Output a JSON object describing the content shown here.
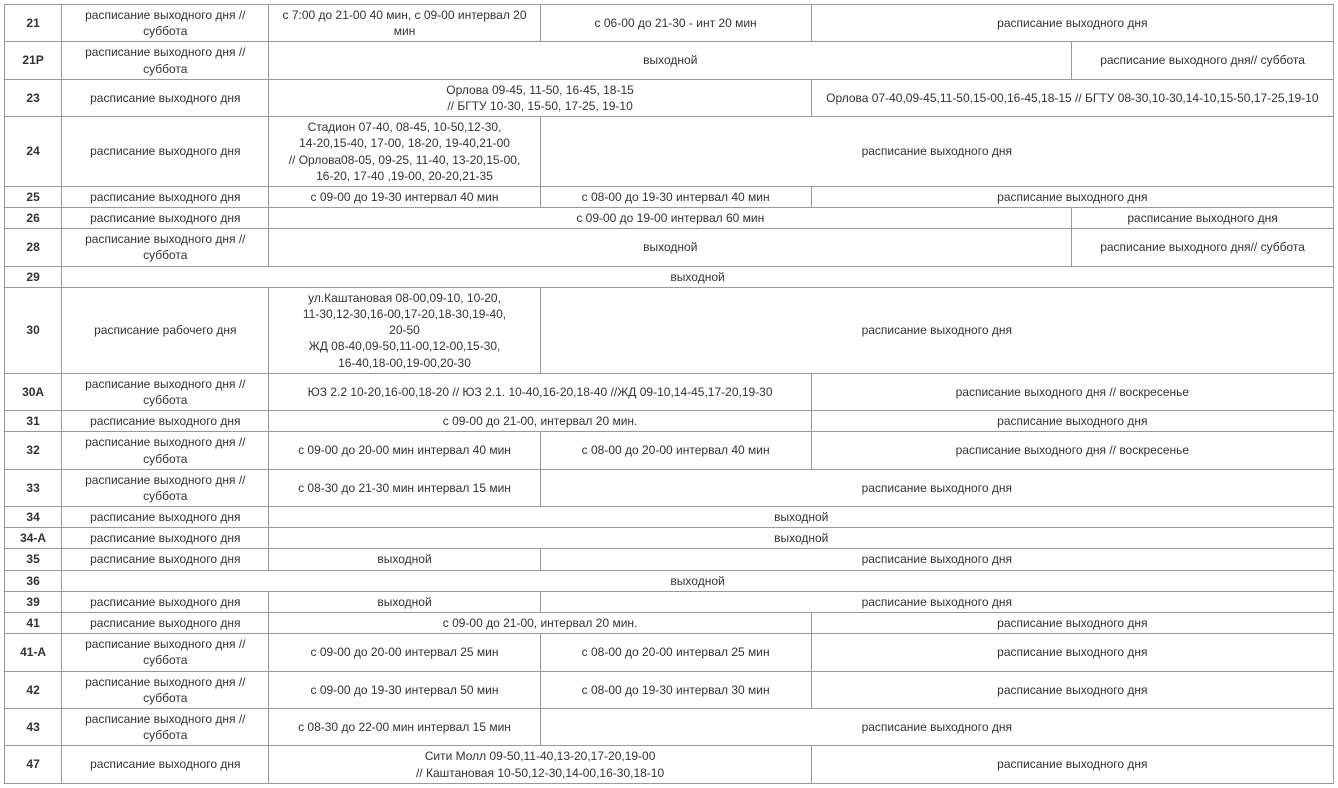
{
  "table": {
    "type": "table",
    "border_color": "#999999",
    "text_color": "#333333",
    "background_color": "#ffffff",
    "font_size_pt": 9,
    "col_widths_pct": [
      4.3,
      15.6,
      20.4,
      20.4,
      19.6,
      19.7
    ],
    "rows": [
      {
        "route": "21",
        "cells": [
          {
            "text": "расписание выходного дня //суббота"
          },
          {
            "text": "с 7:00 до 21-00 40 мин, с 09-00 интервал 20 мин"
          },
          {
            "text": "с 06-00 до 21-30 - инт 20 мин"
          },
          {
            "text": "расписание выходного дня",
            "span": 2
          }
        ]
      },
      {
        "route": "21Р",
        "cells": [
          {
            "text": "расписание выходного дня //суббота"
          },
          {
            "text": "выходной",
            "span": 3
          },
          {
            "text": "расписание выходного дня// суббота"
          }
        ]
      },
      {
        "route": "23",
        "cells": [
          {
            "text": "расписание выходного дня"
          },
          {
            "text": "Орлова 09-45, 11-50, 16-45, 18-15\n//  БГТУ  10-30, 15-50, 17-25, 19-10",
            "span": 2
          },
          {
            "text": "Орлова 07-40,09-45,11-50,15-00,16-45,18-15 // БГТУ 08-30,10-30,14-10,15-50,17-25,19-10",
            "span": 2
          }
        ]
      },
      {
        "route": "24",
        "cells": [
          {
            "text": "расписание выходного дня"
          },
          {
            "text": "Стадион 07-40, 08-45, 10-50,12-30,\n14-20,15-40, 17-00, 18-20, 19-40,21-00\n// Орлова08-05, 09-25, 11-40, 13-20,15-00,\n16-20, 17-40 ,19-00, 20-20,21-35"
          },
          {
            "text": "расписание выходного дня",
            "span": 3
          }
        ]
      },
      {
        "route": "25",
        "cells": [
          {
            "text": "расписание выходного дня"
          },
          {
            "text": "с 09-00 до 19-30 интервал 40 мин"
          },
          {
            "text": "с 08-00 до 19-30  интервал 40 мин"
          },
          {
            "text": "расписание выходного дня",
            "span": 2
          }
        ]
      },
      {
        "route": "26",
        "cells": [
          {
            "text": "расписание выходного дня"
          },
          {
            "text": "с 09-00 до 19-00 интервал 60 мин",
            "span": 3
          },
          {
            "text": "расписание выходного дня"
          }
        ]
      },
      {
        "route": "28",
        "cells": [
          {
            "text": "расписание выходного дня //суббота"
          },
          {
            "text": "выходной",
            "span": 3
          },
          {
            "text": "расписание выходного дня// суббота"
          }
        ]
      },
      {
        "route": "29",
        "cells": [
          {
            "text": "выходной",
            "span": 5
          }
        ]
      },
      {
        "route": "30",
        "cells": [
          {
            "text": "расписание рабочего дня"
          },
          {
            "text": "ул.Каштановая 08-00,09-10, 10-20,\n11-30,12-30,16-00,17-20,18-30,19-40,\n20-50\nЖД 08-40,09-50,11-00,12-00,15-30,\n16-40,18-00,19-00,20-30"
          },
          {
            "text": "расписание выходного дня",
            "span": 3
          }
        ]
      },
      {
        "route": "30А",
        "cells": [
          {
            "text": "расписание выходного дня //суббота"
          },
          {
            "text": "ЮЗ 2.2 10-20,16-00,18-20 // ЮЗ 2.1. 10-40,16-20,18-40 //ЖД 09-10,14-45,17-20,19-30",
            "span": 2
          },
          {
            "text": "расписание выходного дня // воскресенье",
            "span": 2
          }
        ]
      },
      {
        "route": "31",
        "cells": [
          {
            "text": "расписание выходного дня"
          },
          {
            "text": "с 09-00 до 21-00, интервал 20 мин.",
            "span": 2
          },
          {
            "text": "расписание выходного дня",
            "span": 2
          }
        ]
      },
      {
        "route": "32",
        "cells": [
          {
            "text": "расписание выходного дня //суббота"
          },
          {
            "text": "с 09-00 до 20-00 мин интервал 40 мин"
          },
          {
            "text": "с 08-00 до 20-00  интервал 40 мин"
          },
          {
            "text": "расписание выходного дня // воскресенье",
            "span": 2
          }
        ]
      },
      {
        "route": "33",
        "cells": [
          {
            "text": "расписание выходного дня //суббота"
          },
          {
            "text": "с 08-30 до 21-30 мин интервал 15 мин"
          },
          {
            "text": "расписание выходного дня",
            "span": 3
          }
        ]
      },
      {
        "route": "34",
        "cells": [
          {
            "text": "расписание выходного дня"
          },
          {
            "text": "выходной",
            "span": 4
          }
        ]
      },
      {
        "route": "34-А",
        "cells": [
          {
            "text": "расписание выходного дня"
          },
          {
            "text": "выходной",
            "span": 4
          }
        ]
      },
      {
        "route": "35",
        "cells": [
          {
            "text": "расписание выходного дня"
          },
          {
            "text": "выходной"
          },
          {
            "text": "расписание выходного дня",
            "span": 3
          }
        ]
      },
      {
        "route": "36",
        "cells": [
          {
            "text": "выходной",
            "span": 5
          }
        ]
      },
      {
        "route": "39",
        "cells": [
          {
            "text": "расписание выходного дня"
          },
          {
            "text": "выходной"
          },
          {
            "text": "расписание выходного дня",
            "span": 3
          }
        ]
      },
      {
        "route": "41",
        "cells": [
          {
            "text": "расписание выходного дня"
          },
          {
            "text": "с 09-00 до 21-00, интервал 20 мин.",
            "span": 2
          },
          {
            "text": "расписание выходного дня",
            "span": 2
          }
        ]
      },
      {
        "route": "41-А",
        "cells": [
          {
            "text": "расписание выходного дня //суббота"
          },
          {
            "text": "с 09-00 до 20-00 интервал 25 мин"
          },
          {
            "text": "с 08-00 до 20-00 интервал 25 мин"
          },
          {
            "text": "расписание выходного дня",
            "span": 2
          }
        ]
      },
      {
        "route": "42",
        "cells": [
          {
            "text": "расписание выходного дня //суббота"
          },
          {
            "text": "с 09-00 до 19-30 интервал 50 мин"
          },
          {
            "text": "с 08-00 до 19-30 интервал 30 мин"
          },
          {
            "text": "расписание выходного дня",
            "span": 2
          }
        ]
      },
      {
        "route": "43",
        "cells": [
          {
            "text": "расписание выходного дня //суббота"
          },
          {
            "text": "с 08-30 до 22-00 мин  интервал 15 мин"
          },
          {
            "text": "расписание выходного дня",
            "span": 3
          }
        ]
      },
      {
        "route": "47",
        "cells": [
          {
            "text": "расписание выходного дня"
          },
          {
            "text": "Сити Молл 09-50,11-40,13-20,17-20,19-00\n// Каштановая 10-50,12-30,14-00,16-30,18-10",
            "span": 2
          },
          {
            "text": "расписание выходного дня",
            "span": 2
          }
        ]
      }
    ]
  }
}
